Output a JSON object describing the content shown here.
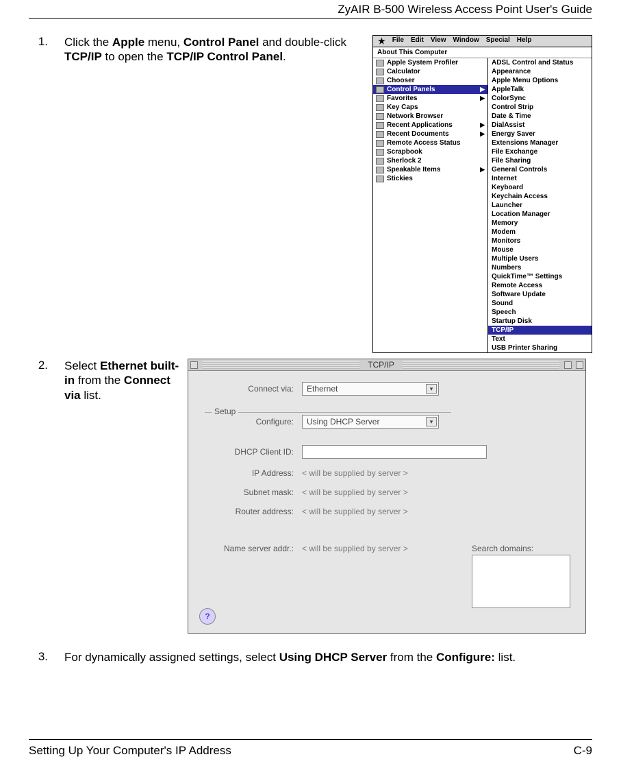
{
  "header": "ZyAIR B-500 Wireless Access Point User's Guide",
  "step1": {
    "num": "1.",
    "text_prefix": "Click the ",
    "b1": "Apple",
    "t2": " menu, ",
    "b2": "Control Panel",
    "t3": " and double-click ",
    "b3": "TCP/IP",
    "t4": " to open the ",
    "b4": "TCP/IP Control Panel",
    "t5": "."
  },
  "menubar": [
    "File",
    "Edit",
    "View",
    "Window",
    "Special",
    "Help"
  ],
  "about": "About This Computer",
  "apple_menu": [
    {
      "label": "Apple System Profiler",
      "arrow": false
    },
    {
      "label": "Calculator",
      "arrow": false
    },
    {
      "label": "Chooser",
      "arrow": false
    },
    {
      "label": "Control Panels",
      "arrow": true,
      "sel": true
    },
    {
      "label": "Favorites",
      "arrow": true
    },
    {
      "label": "Key Caps",
      "arrow": false
    },
    {
      "label": "Network Browser",
      "arrow": false
    },
    {
      "label": "Recent Applications",
      "arrow": true
    },
    {
      "label": "Recent Documents",
      "arrow": true
    },
    {
      "label": "Remote Access Status",
      "arrow": false
    },
    {
      "label": "Scrapbook",
      "arrow": false
    },
    {
      "label": "Sherlock 2",
      "arrow": false
    },
    {
      "label": "Speakable Items",
      "arrow": true
    },
    {
      "label": "Stickies",
      "arrow": false
    }
  ],
  "cp_menu": [
    "ADSL Control and Status",
    "Appearance",
    "Apple Menu Options",
    "AppleTalk",
    "ColorSync",
    "Control Strip",
    "Date & Time",
    "DialAssist",
    "Energy Saver",
    "Extensions Manager",
    "File Exchange",
    "File Sharing",
    "General Controls",
    "Internet",
    "Keyboard",
    "Keychain Access",
    "Launcher",
    "Location Manager",
    "Memory",
    "Modem",
    "Monitors",
    "Mouse",
    "Multiple Users",
    "Numbers",
    "QuickTime™ Settings",
    "Remote Access",
    "Software Update",
    "Sound",
    "Speech",
    "Startup Disk",
    "TCP/IP",
    "Text",
    "USB Printer Sharing"
  ],
  "cp_sel": "TCP/IP",
  "step2": {
    "num": "2.",
    "t1": "Select ",
    "b1": "Ethernet built-in",
    "t2": " from the ",
    "b2": "Connect via",
    "t3": " list."
  },
  "tcpip": {
    "title": "TCP/IP",
    "connect_label": "Connect via:",
    "connect_value": "Ethernet",
    "setup": "Setup",
    "configure_label": "Configure:",
    "configure_value": "Using DHCP Server",
    "dhcp_label": "DHCP Client ID:",
    "ip_label": "IP Address:",
    "ip_value": "< will be supplied by server >",
    "subnet_label": "Subnet mask:",
    "subnet_value": "< will be supplied by server >",
    "router_label": "Router address:",
    "router_value": "< will be supplied by server >",
    "ns_label": "Name server addr.:",
    "ns_value": "< will be supplied by server >",
    "search_label": "Search domains:",
    "help": "?"
  },
  "step3": {
    "num": "3.",
    "t1": "For dynamically assigned settings, select ",
    "b1": "Using DHCP Server",
    "t2": " from the ",
    "b2": "Configure:",
    "t3": " list."
  },
  "footer_left": "Setting Up Your Computer's IP Address",
  "footer_right": "C-9"
}
